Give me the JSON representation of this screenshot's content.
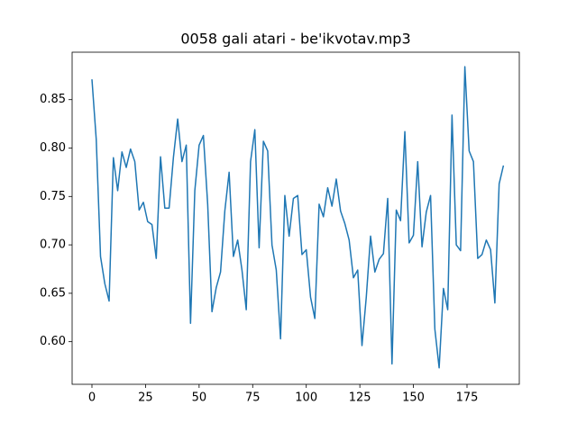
{
  "chart_data": {
    "type": "line",
    "title": "0058 gali atari - be'ikvotav.mp3",
    "x": [
      0,
      2,
      4,
      6,
      8,
      10,
      12,
      14,
      16,
      18,
      20,
      22,
      24,
      26,
      28,
      30,
      32,
      34,
      36,
      38,
      40,
      42,
      44,
      46,
      48,
      50,
      52,
      54,
      56,
      58,
      60,
      62,
      64,
      66,
      68,
      70,
      72,
      74,
      76,
      78,
      80,
      82,
      84,
      86,
      88,
      90,
      92,
      94,
      96,
      98,
      100,
      102,
      104,
      106,
      108,
      110,
      112,
      114,
      116,
      118,
      120,
      122,
      124,
      126,
      128,
      130,
      132,
      134,
      136,
      138,
      140,
      142,
      144,
      146,
      148,
      150,
      152,
      154,
      156,
      158,
      160,
      162,
      164,
      166,
      168,
      170,
      172,
      174,
      176,
      178,
      180,
      182,
      184,
      186,
      188,
      190,
      192
    ],
    "values": [
      0.871,
      0.809,
      0.688,
      0.66,
      0.642,
      0.79,
      0.756,
      0.796,
      0.78,
      0.799,
      0.786,
      0.736,
      0.744,
      0.724,
      0.721,
      0.686,
      0.791,
      0.738,
      0.738,
      0.79,
      0.83,
      0.786,
      0.803,
      0.619,
      0.756,
      0.803,
      0.813,
      0.742,
      0.631,
      0.656,
      0.672,
      0.735,
      0.775,
      0.688,
      0.705,
      0.674,
      0.633,
      0.786,
      0.819,
      0.697,
      0.807,
      0.797,
      0.7,
      0.674,
      0.603,
      0.751,
      0.709,
      0.748,
      0.751,
      0.69,
      0.695,
      0.646,
      0.624,
      0.742,
      0.729,
      0.759,
      0.74,
      0.768,
      0.735,
      0.722,
      0.705,
      0.666,
      0.674,
      0.596,
      0.646,
      0.709,
      0.672,
      0.685,
      0.691,
      0.748,
      0.577,
      0.736,
      0.725,
      0.817,
      0.702,
      0.71,
      0.786,
      0.698,
      0.734,
      0.751,
      0.613,
      0.573,
      0.655,
      0.633,
      0.834,
      0.7,
      0.694,
      0.884,
      0.797,
      0.786,
      0.686,
      0.69,
      0.705,
      0.695,
      0.64,
      0.763,
      0.782
    ],
    "color": "#1f77b4",
    "xlim": [
      -9.25,
      199.4
    ],
    "ylim": [
      0.556,
      0.899
    ],
    "xticks": [
      0,
      25,
      50,
      75,
      100,
      125,
      150,
      175
    ],
    "yticks": [
      {
        "value": 0.6,
        "label": "0.60"
      },
      0.65,
      {
        "value": 0.7,
        "label": "0.70"
      },
      0.75,
      {
        "value": 0.8,
        "label": "0.80"
      },
      0.85
    ]
  }
}
